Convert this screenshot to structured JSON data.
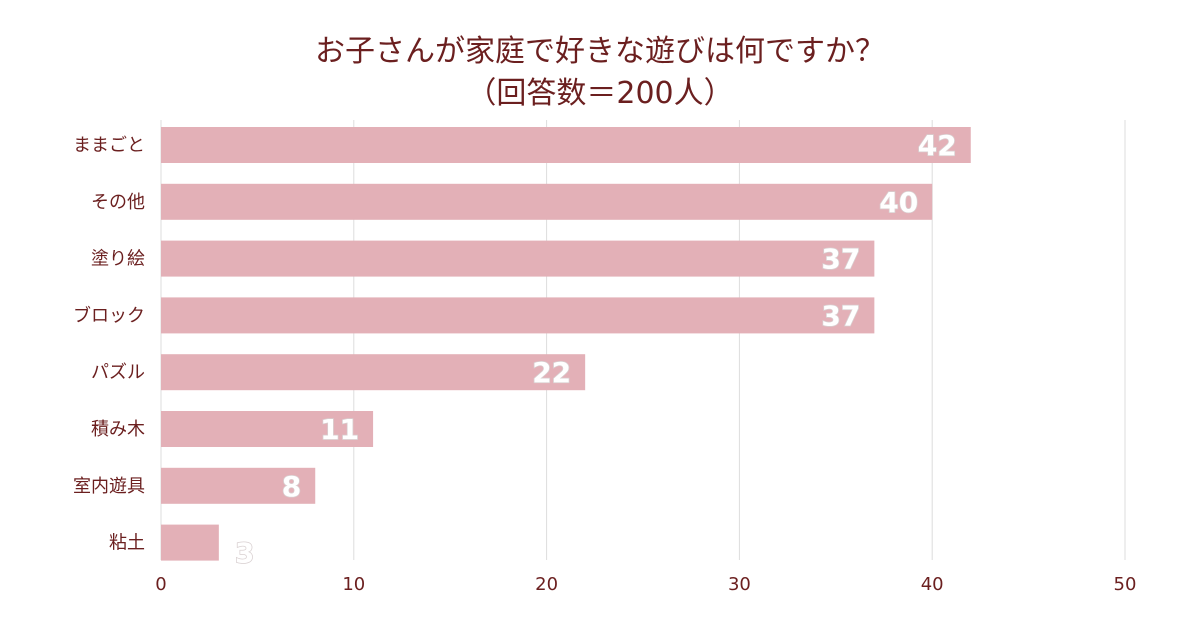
{
  "chart_data": {
    "type": "bar",
    "orientation": "horizontal",
    "title_lines": [
      "お子さんが家庭で好きな遊びは何ですか？",
      "（回答数＝200人）"
    ],
    "categories": [
      "ままごと",
      "その他",
      "塗り絵",
      "ブロック",
      "パズル",
      "積み木",
      "室内遊具",
      "粘土"
    ],
    "values": [
      42,
      40,
      37,
      37,
      22,
      11,
      8,
      3
    ],
    "xlabel": "",
    "ylabel": "",
    "xlim": [
      0,
      50
    ],
    "ticks": [
      0,
      10,
      20,
      30,
      40,
      50
    ],
    "grid": true,
    "legend": "none"
  },
  "colors": {
    "bar": "#e3b0b7",
    "title": "#6b1f1f",
    "category_label": "#6b1f1f",
    "tick_label": "#6b1f1f",
    "grid": "#dddddd",
    "value_label_fill": "#ffffff",
    "value_label_stroke": "#d8cfd0"
  }
}
